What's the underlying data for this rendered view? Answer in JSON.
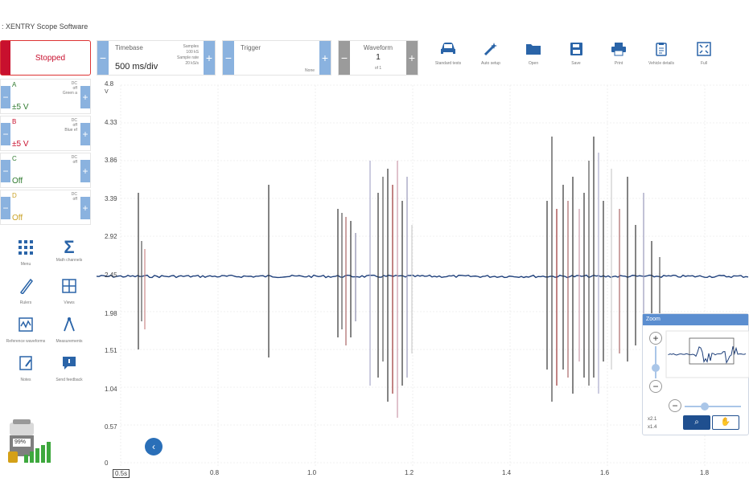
{
  "app": {
    "title": ": XENTRY Scope Software"
  },
  "status": {
    "label": "Stopped"
  },
  "timebase": {
    "label": "Timebase",
    "value": "500 ms/div",
    "info1": "Samples",
    "info2": "100 kS",
    "info3": "Sample rate",
    "info4": "20 kS/s"
  },
  "trigger": {
    "label": "Trigger",
    "mode": "None"
  },
  "waveform": {
    "label": "Waveform",
    "number": "1",
    "of": "of 1"
  },
  "toolbar": [
    {
      "label": "Standard tests",
      "icon": "car-icon"
    },
    {
      "label": "Auto setup",
      "icon": "wand-icon"
    },
    {
      "label": "Open",
      "icon": "folder-icon"
    },
    {
      "label": "Save",
      "icon": "save-icon"
    },
    {
      "label": "Print",
      "icon": "print-icon"
    },
    {
      "label": "Vehicle details",
      "icon": "clipboard-icon"
    },
    {
      "label": "Full",
      "icon": "fullscreen-icon"
    }
  ],
  "channels": [
    {
      "name": "A",
      "value": "±5 V",
      "coupling": "DC",
      "info2": "off",
      "info3": "Green a",
      "color": "#2f7a2f"
    },
    {
      "name": "B",
      "value": "±5 V",
      "coupling": "DC",
      "info2": "off",
      "info3": "Blue ef",
      "color": "#c8102e"
    },
    {
      "name": "C",
      "value": "Off",
      "coupling": "DC",
      "info2": "off",
      "info3": "",
      "color": "#2f7a2f"
    },
    {
      "name": "D",
      "value": "Off",
      "coupling": "DC",
      "info2": "off",
      "info3": "",
      "color": "#c9a227"
    }
  ],
  "side_tools": [
    {
      "label": "Menu",
      "icon": "grid-icon"
    },
    {
      "label": "Math channels",
      "icon": "sigma-icon"
    },
    {
      "label": "Rulers",
      "icon": "ruler-icon"
    },
    {
      "label": "Views",
      "icon": "views-icon"
    },
    {
      "label": "Reference waveforms",
      "icon": "waveform-icon"
    },
    {
      "label": "Measurements",
      "icon": "compass-icon"
    },
    {
      "label": "Notes",
      "icon": "notes-icon"
    },
    {
      "label": "Send feedback",
      "icon": "feedback-icon"
    }
  ],
  "battery": {
    "percent": "99%"
  },
  "plot": {
    "y_labels": [
      "4.8",
      "V",
      "4.33",
      "3.86",
      "3.39",
      "2.92",
      "2.45",
      "1.98",
      "1.51",
      "1.04",
      "0.57",
      "0"
    ],
    "x_labels": [
      "0.5s",
      "0.8",
      "1.0",
      "1.2",
      "1.4",
      "1.6",
      "1.8"
    ]
  },
  "zoom": {
    "title": "Zoom",
    "factor_x": "x2.1",
    "factor_y": "x1.4"
  }
}
